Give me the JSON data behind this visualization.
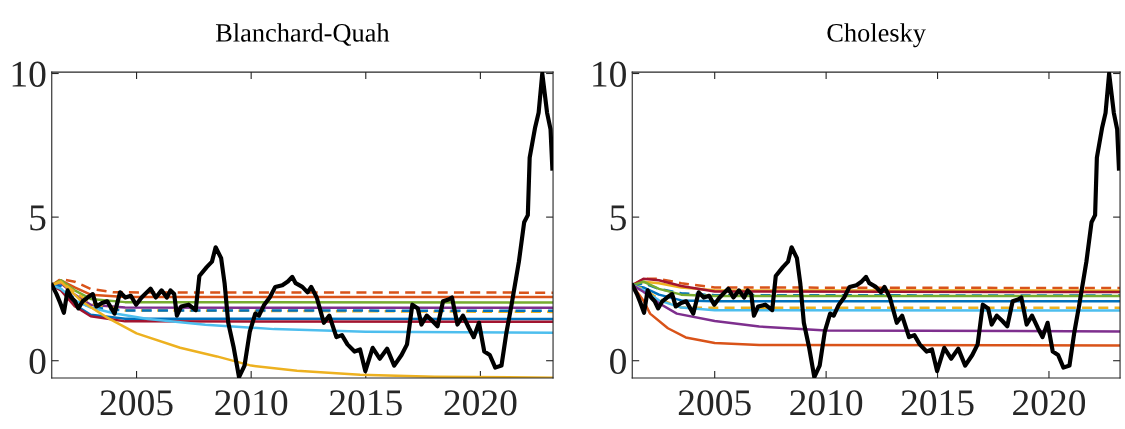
{
  "chart_data": [
    {
      "type": "line",
      "title": "Blanchard-Quah",
      "xlim": [
        2001.3,
        2023.17
      ],
      "ylim": [
        -0.6,
        10.05
      ],
      "xticks": [
        2005,
        2010,
        2015,
        2020
      ],
      "yticks": [
        0,
        5,
        10
      ],
      "series": [
        {
          "color": "#d95319",
          "line_style": "dashed",
          "x": [
            2001.3,
            2001.7,
            2002.3,
            2003,
            2004,
            2023.17
          ],
          "values": [
            2.63,
            2.85,
            2.75,
            2.5,
            2.38,
            2.37
          ]
        },
        {
          "color": "#d95319",
          "line_style": "solid",
          "x": [
            2001.3,
            2001.7,
            2002.3,
            2003,
            2004.5,
            2023.17
          ],
          "values": [
            2.63,
            2.8,
            2.55,
            2.3,
            2.22,
            2.22
          ]
        },
        {
          "color": "#77ac30",
          "line_style": "solid",
          "x": [
            2001.3,
            2001.7,
            2002.3,
            2003,
            2004.5,
            2023.17
          ],
          "values": [
            2.63,
            2.8,
            2.45,
            2.15,
            2.04,
            2.03
          ]
        },
        {
          "color": "#7e2f8e",
          "line_style": "solid",
          "x": [
            2001.3,
            2001.7,
            2002.3,
            2003,
            2004.5,
            2023.17
          ],
          "values": [
            2.63,
            2.7,
            2.3,
            1.95,
            1.85,
            1.84
          ]
        },
        {
          "color": "#edb120",
          "line_style": "dashed",
          "x": [
            2001.3,
            2001.7,
            2002.3,
            2003,
            2004.5,
            2023.17
          ],
          "values": [
            2.63,
            2.75,
            2.4,
            2.0,
            1.75,
            1.7
          ]
        },
        {
          "color": "#0072bd",
          "line_style": "dashed",
          "x": [
            2001.3,
            2001.7,
            2002.3,
            2003,
            2004.5,
            2023.17
          ],
          "values": [
            2.63,
            2.6,
            2.15,
            1.85,
            1.75,
            1.74
          ]
        },
        {
          "color": "#0072bd",
          "line_style": "solid",
          "x": [
            2001.3,
            2001.7,
            2002.3,
            2003,
            2004.5,
            2023.17
          ],
          "values": [
            2.63,
            2.5,
            1.95,
            1.6,
            1.46,
            1.45
          ]
        },
        {
          "color": "#a2142f",
          "line_style": "solid",
          "x": [
            2001.3,
            2001.7,
            2002.3,
            2003,
            2004.5,
            2023.17
          ],
          "values": [
            2.63,
            2.45,
            1.9,
            1.55,
            1.37,
            1.36
          ]
        },
        {
          "color": "#4dbeee",
          "line_style": "solid",
          "x": [
            2001.3,
            2001.7,
            2002.3,
            2003,
            2004,
            2005.5,
            2008,
            2011,
            2015,
            2023.17
          ],
          "values": [
            2.63,
            2.5,
            2.1,
            1.85,
            1.65,
            1.45,
            1.25,
            1.1,
            1.01,
            0.97
          ]
        },
        {
          "color": "#edb120",
          "line_style": "solid",
          "x": [
            2001.3,
            2001.7,
            2002.3,
            2002.6,
            2003.7,
            2005,
            2006.9,
            2008.5,
            2010,
            2012,
            2014.75,
            2018,
            2023.17
          ],
          "values": [
            2.63,
            2.75,
            2.3,
            2.07,
            1.51,
            0.95,
            0.45,
            0.15,
            -0.17,
            -0.35,
            -0.49,
            -0.56,
            -0.59
          ]
        },
        {
          "color": "#000000",
          "line_style": "solid",
          "x": [
            2001.31,
            2001.51,
            2001.67,
            2001.83,
            2001.99,
            2002.15,
            2002.31,
            2002.46,
            2002.65,
            2002.86,
            2003.09,
            2003.25,
            2003.49,
            2003.72,
            2004.04,
            2004.28,
            2004.51,
            2004.75,
            2004.98,
            2005.22,
            2005.61,
            2005.84,
            2006.09,
            2006.32,
            2006.48,
            2006.64,
            2006.76,
            2006.95,
            2007.27,
            2007.58,
            2007.74,
            2008.06,
            2008.29,
            2008.45,
            2008.69,
            2008.84,
            2009.0,
            2009.24,
            2009.47,
            2009.71,
            2009.94,
            2010.18,
            2010.34,
            2010.57,
            2010.81,
            2011.05,
            2011.36,
            2011.6,
            2011.79,
            2011.94,
            2012.23,
            2012.46,
            2012.62,
            2012.86,
            2013.17,
            2013.41,
            2013.72,
            2013.96,
            2014.2,
            2014.51,
            2014.75,
            2014.98,
            2015.3,
            2015.61,
            2015.93,
            2016.24,
            2016.56,
            2016.8,
            2017.03,
            2017.27,
            2017.43,
            2017.66,
            2017.9,
            2018.13,
            2018.37,
            2018.61,
            2018.76,
            2019.0,
            2019.24,
            2019.5,
            2019.71,
            2019.94,
            2020.17,
            2020.41,
            2020.65,
            2020.92,
            2021.13,
            2021.36,
            2021.68,
            2021.91,
            2022.07,
            2022.15,
            2022.39,
            2022.54,
            2022.7,
            2022.91,
            2023.06,
            2023.14
          ],
          "values": [
            2.63,
            2.32,
            2.01,
            1.67,
            2.45,
            2.2,
            2.07,
            1.82,
            2.07,
            2.2,
            2.32,
            1.89,
            2.01,
            2.07,
            1.64,
            2.38,
            2.2,
            2.26,
            1.95,
            2.2,
            2.51,
            2.2,
            2.45,
            2.2,
            2.45,
            2.32,
            1.57,
            1.89,
            1.95,
            1.76,
            2.95,
            3.26,
            3.45,
            3.95,
            3.57,
            2.7,
            1.32,
            0.45,
            -0.57,
            -0.17,
            1.01,
            1.64,
            1.57,
            1.95,
            2.2,
            2.57,
            2.63,
            2.76,
            2.92,
            2.7,
            2.57,
            2.38,
            2.57,
            2.2,
            1.32,
            1.57,
            0.82,
            0.89,
            0.57,
            0.32,
            0.39,
            -0.36,
            0.45,
            0.07,
            0.42,
            -0.17,
            0.2,
            0.57,
            1.95,
            1.82,
            1.26,
            1.57,
            1.39,
            1.2,
            2.07,
            2.13,
            2.2,
            1.26,
            1.57,
            1.14,
            0.82,
            1.32,
            0.32,
            0.2,
            -0.24,
            -0.17,
            0.95,
            1.95,
            3.45,
            4.82,
            5.07,
            7.07,
            8.13,
            8.63,
            10.0,
            8.63,
            8.06,
            6.69
          ]
        }
      ]
    },
    {
      "type": "line",
      "title": "Cholesky",
      "xlim": [
        2001.3,
        2023.19
      ],
      "ylim": [
        -0.6,
        10.05
      ],
      "xticks": [
        2005,
        2010,
        2015,
        2020
      ],
      "yticks": [
        0,
        5,
        10
      ],
      "series": [
        {
          "color": "#d95319",
          "line_style": "dashed",
          "x": [
            2001.3,
            2001.8,
            2002.5,
            2003.5,
            2005,
            2023.19
          ],
          "values": [
            2.63,
            2.85,
            2.85,
            2.7,
            2.55,
            2.53
          ]
        },
        {
          "color": "#edb120",
          "line_style": "solid",
          "x": [
            2001.3,
            2001.8,
            2002.5,
            2003.5,
            2005,
            2023.19
          ],
          "values": [
            2.63,
            2.75,
            2.7,
            2.55,
            2.45,
            2.44
          ]
        },
        {
          "color": "#a2142f",
          "line_style": "solid",
          "x": [
            2001.3,
            2001.8,
            2002.5,
            2003.5,
            2005,
            2023.19
          ],
          "values": [
            2.63,
            2.85,
            2.8,
            2.6,
            2.41,
            2.39
          ]
        },
        {
          "color": "#0072bd",
          "line_style": "dashed",
          "x": [
            2001.3,
            2001.8,
            2002.5,
            2003.5,
            2005,
            2023.19
          ],
          "values": [
            2.63,
            2.7,
            2.5,
            2.35,
            2.28,
            2.27
          ]
        },
        {
          "color": "#77ac30",
          "line_style": "solid",
          "x": [
            2001.3,
            2001.8,
            2002.5,
            2003.5,
            2005,
            2023.19
          ],
          "values": [
            2.63,
            2.75,
            2.5,
            2.3,
            2.25,
            2.25
          ]
        },
        {
          "color": "#0072bd",
          "line_style": "solid",
          "x": [
            2001.3,
            2001.8,
            2002.5,
            2003.5,
            2005,
            2023.19
          ],
          "values": [
            2.63,
            2.55,
            2.3,
            2.1,
            2.07,
            2.07
          ]
        },
        {
          "color": "#edb120",
          "line_style": "dashed",
          "x": [
            2001.3,
            2001.8,
            2002.5,
            2003.5,
            2005,
            2023.19
          ],
          "values": [
            2.63,
            2.5,
            2.15,
            1.85,
            1.84,
            1.84
          ]
        },
        {
          "color": "#4dbeee",
          "line_style": "solid",
          "x": [
            2001.3,
            2001.8,
            2002.5,
            2003.5,
            2005,
            2023.19
          ],
          "values": [
            2.63,
            2.45,
            2.1,
            1.85,
            1.76,
            1.75
          ]
        },
        {
          "color": "#7e2f8e",
          "line_style": "solid",
          "x": [
            2001.3,
            2001.8,
            2002.5,
            2003.3,
            2005,
            2007,
            2010,
            2023.19
          ],
          "values": [
            2.63,
            2.4,
            2.0,
            1.64,
            1.38,
            1.19,
            1.05,
            1.02
          ]
        },
        {
          "color": "#d95319",
          "line_style": "solid",
          "x": [
            2001.3,
            2001.8,
            2002.1,
            2002.9,
            2003.7,
            2005,
            2007,
            2023.19
          ],
          "values": [
            2.63,
            2.1,
            1.64,
            1.13,
            0.81,
            0.62,
            0.55,
            0.53
          ]
        },
        {
          "color": "#000000",
          "line_style": "solid",
          "x": [
            2001.31,
            2001.51,
            2001.67,
            2001.83,
            2001.99,
            2002.15,
            2002.31,
            2002.46,
            2002.65,
            2002.86,
            2003.09,
            2003.25,
            2003.49,
            2003.72,
            2004.04,
            2004.28,
            2004.51,
            2004.75,
            2004.98,
            2005.22,
            2005.61,
            2005.84,
            2006.09,
            2006.32,
            2006.48,
            2006.64,
            2006.76,
            2006.95,
            2007.27,
            2007.58,
            2007.74,
            2008.06,
            2008.29,
            2008.45,
            2008.69,
            2008.84,
            2009.0,
            2009.24,
            2009.47,
            2009.71,
            2009.94,
            2010.18,
            2010.34,
            2010.57,
            2010.81,
            2011.05,
            2011.36,
            2011.6,
            2011.79,
            2011.94,
            2012.23,
            2012.46,
            2012.62,
            2012.86,
            2013.17,
            2013.41,
            2013.72,
            2013.96,
            2014.2,
            2014.51,
            2014.75,
            2014.98,
            2015.3,
            2015.61,
            2015.93,
            2016.24,
            2016.56,
            2016.8,
            2017.03,
            2017.27,
            2017.43,
            2017.66,
            2017.9,
            2018.13,
            2018.37,
            2018.61,
            2018.76,
            2019.0,
            2019.24,
            2019.5,
            2019.71,
            2019.94,
            2020.17,
            2020.41,
            2020.65,
            2020.92,
            2021.13,
            2021.36,
            2021.68,
            2021.91,
            2022.07,
            2022.15,
            2022.39,
            2022.54,
            2022.7,
            2022.91,
            2023.06,
            2023.14
          ],
          "values": [
            2.63,
            2.32,
            2.01,
            1.67,
            2.45,
            2.2,
            2.07,
            1.82,
            2.07,
            2.2,
            2.32,
            1.89,
            2.01,
            2.07,
            1.64,
            2.38,
            2.2,
            2.26,
            1.95,
            2.2,
            2.51,
            2.2,
            2.45,
            2.2,
            2.45,
            2.32,
            1.57,
            1.89,
            1.95,
            1.76,
            2.95,
            3.26,
            3.45,
            3.95,
            3.57,
            2.7,
            1.32,
            0.45,
            -0.57,
            -0.17,
            1.01,
            1.64,
            1.57,
            1.95,
            2.2,
            2.57,
            2.63,
            2.76,
            2.92,
            2.7,
            2.57,
            2.38,
            2.57,
            2.2,
            1.32,
            1.57,
            0.82,
            0.89,
            0.57,
            0.32,
            0.39,
            -0.36,
            0.45,
            0.07,
            0.42,
            -0.17,
            0.2,
            0.57,
            1.95,
            1.82,
            1.26,
            1.57,
            1.39,
            1.2,
            2.07,
            2.13,
            2.2,
            1.26,
            1.57,
            1.14,
            0.82,
            1.32,
            0.32,
            0.2,
            -0.24,
            -0.17,
            0.95,
            1.95,
            3.45,
            4.82,
            5.07,
            7.07,
            8.13,
            8.63,
            10.0,
            8.63,
            8.06,
            6.69
          ]
        }
      ]
    }
  ]
}
